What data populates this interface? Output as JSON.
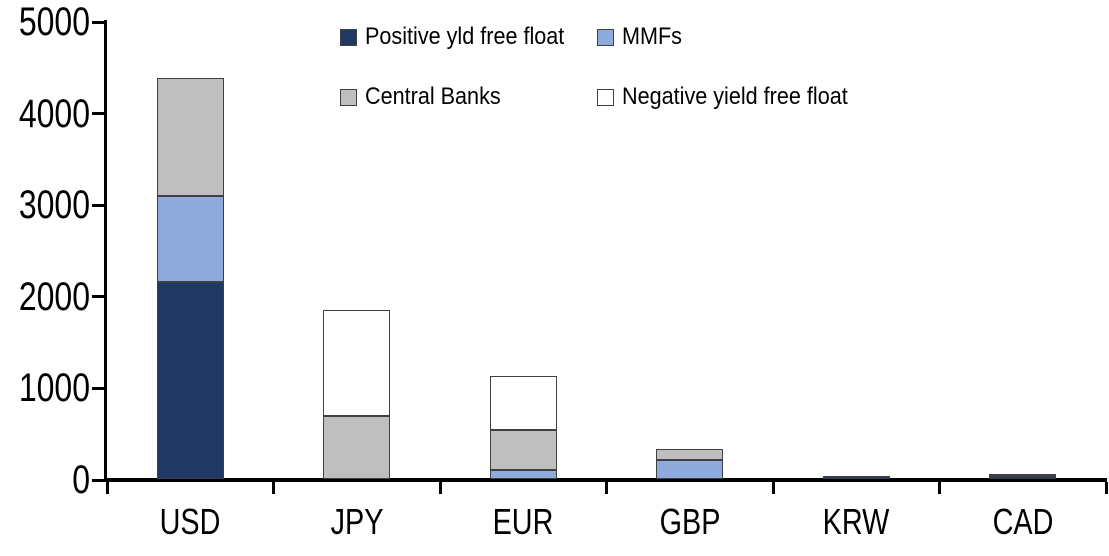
{
  "chart_data": {
    "type": "bar",
    "stacked": true,
    "title": "",
    "categories": [
      "USD",
      "JPY",
      "EUR",
      "GBP",
      "KRW",
      "CAD"
    ],
    "series": [
      {
        "name": "Positive yld free float",
        "color": "#1F3864",
        "values": [
          2150,
          0,
          0,
          0,
          35,
          30
        ]
      },
      {
        "name": "MMFs",
        "color": "#8FAADC",
        "values": [
          940,
          0,
          100,
          210,
          0,
          0
        ]
      },
      {
        "name": "Central Banks",
        "color": "#BFBFBF",
        "values": [
          1290,
          690,
          430,
          120,
          0,
          30
        ]
      },
      {
        "name": "Negative yield free float",
        "color": "#FFFFFF",
        "values": [
          0,
          1150,
          590,
          0,
          0,
          0
        ]
      }
    ],
    "ylim": [
      0,
      5000
    ],
    "ytick_step": 1000,
    "ytick_labels": [
      "0",
      "1000",
      "2000",
      "3000",
      "4000",
      "5000"
    ],
    "grid": false,
    "legend_position": "top",
    "legend_rows": [
      [
        "Positive yld free float",
        "MMFs"
      ],
      [
        "Central Banks",
        "Negative yield free float"
      ]
    ],
    "colors": {
      "axis": "#000000",
      "segment_border": "#404040",
      "background": "#FFFFFF"
    }
  }
}
